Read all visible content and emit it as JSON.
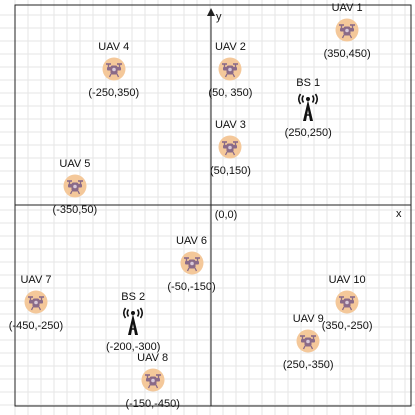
{
  "axes": {
    "x_label": "x",
    "y_label": "y",
    "origin_label": "(0,0)"
  },
  "uavs": [
    {
      "name": "UAV 1",
      "coord": "(350,450)",
      "x": 350,
      "y": 450
    },
    {
      "name": "UAV 4",
      "coord": "(-250,350)",
      "x": -250,
      "y": 350
    },
    {
      "name": "UAV 2",
      "coord": "(50, 350)",
      "x": 50,
      "y": 350
    },
    {
      "name": "UAV 3",
      "coord": "(50,150)",
      "x": 50,
      "y": 150
    },
    {
      "name": "UAV 5",
      "coord": "(-350,50)",
      "x": -350,
      "y": 50
    },
    {
      "name": "UAV 6",
      "coord": "(-50,-150)",
      "x": -50,
      "y": -150
    },
    {
      "name": "UAV 7",
      "coord": "(-450,-250)",
      "x": -450,
      "y": -250
    },
    {
      "name": "UAV 8",
      "coord": "(-150,-450)",
      "x": -150,
      "y": -450
    },
    {
      "name": "UAV 9",
      "coord": "(250,-350)",
      "x": 250,
      "y": -350
    },
    {
      "name": "UAV 10",
      "coord": "(350,-250)",
      "x": 350,
      "y": -250
    }
  ],
  "base_stations": [
    {
      "name": "BS 1",
      "coord": "(250,250)",
      "x": 250,
      "y": 250
    },
    {
      "name": "BS 2",
      "coord": "(-200,-300)",
      "x": -200,
      "y": -300
    }
  ],
  "colors": {
    "uav_circle": "#f4c89a",
    "uav_body": "#8a6a88",
    "grid": "#e6e6e6",
    "axis": "#222222",
    "tower": "#111111"
  },
  "icons": {
    "uav": "drone-icon",
    "base_station": "radio-tower-icon"
  }
}
